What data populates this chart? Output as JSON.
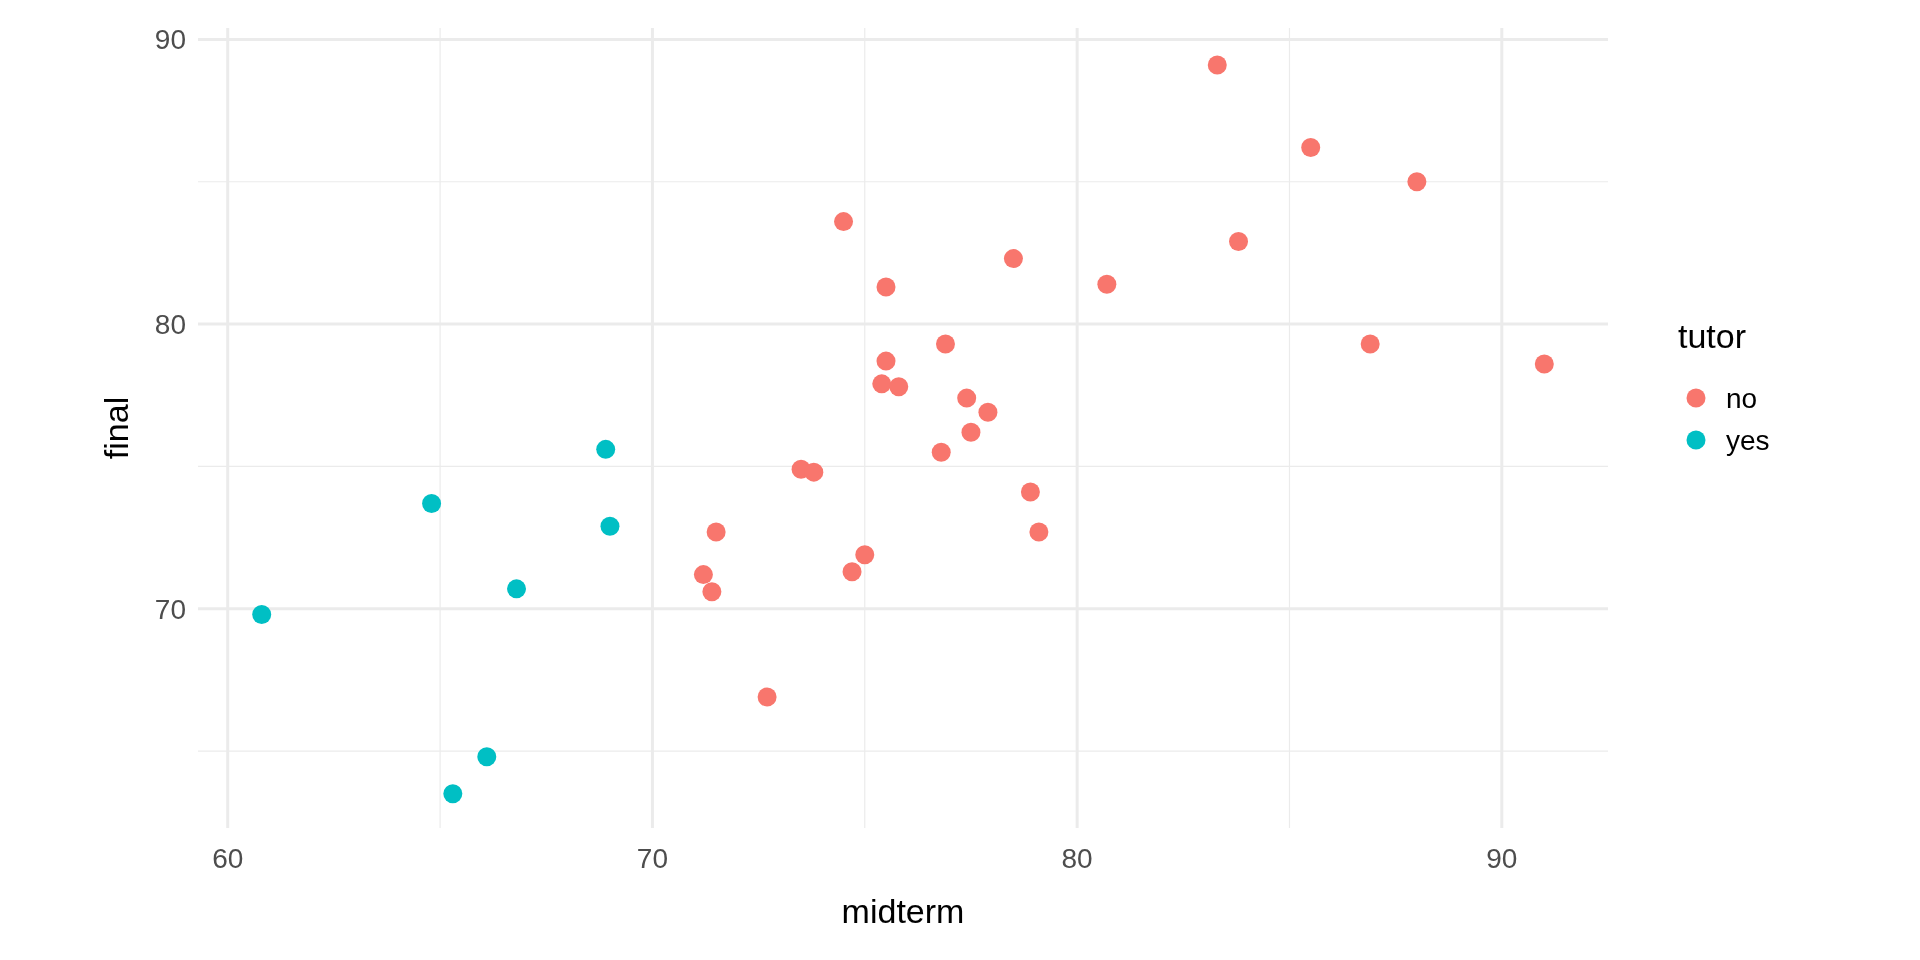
{
  "chart_data": {
    "type": "scatter",
    "xlabel": "midterm",
    "ylabel": "final",
    "legend_title": "tutor",
    "legend": "right",
    "grid": true,
    "marker": "circle",
    "xlim": [
      59.3,
      92.5
    ],
    "xticks": [
      60,
      70,
      80,
      90
    ],
    "ylim": [
      62.3,
      90.4
    ],
    "yticks": [
      70,
      80,
      90
    ],
    "series": [
      {
        "name": "no",
        "color": "#f8766d",
        "x": [
          83.3,
          85.5,
          88.0,
          83.8,
          86.9,
          91.0,
          80.7,
          78.5,
          74.5,
          75.5,
          75.5,
          75.4,
          75.8,
          76.9,
          77.4,
          77.9,
          77.5,
          76.8,
          78.9,
          79.1,
          73.5,
          73.8,
          71.5,
          71.2,
          71.4,
          75.0,
          74.7,
          72.7
        ],
        "values": [
          89.1,
          86.2,
          85.0,
          82.9,
          79.3,
          78.6,
          81.4,
          82.3,
          83.6,
          81.3,
          78.7,
          77.9,
          77.8,
          79.3,
          77.4,
          76.9,
          76.2,
          75.5,
          74.1,
          72.7,
          74.9,
          74.8,
          72.7,
          71.2,
          70.6,
          71.9,
          71.3,
          66.9
        ]
      },
      {
        "name": "yes",
        "color": "#00bfc4",
        "x": [
          60.8,
          64.8,
          66.8,
          68.9,
          69.0,
          66.1,
          65.3
        ],
        "values": [
          69.8,
          73.7,
          70.7,
          75.6,
          72.9,
          64.8,
          63.5
        ]
      }
    ]
  }
}
